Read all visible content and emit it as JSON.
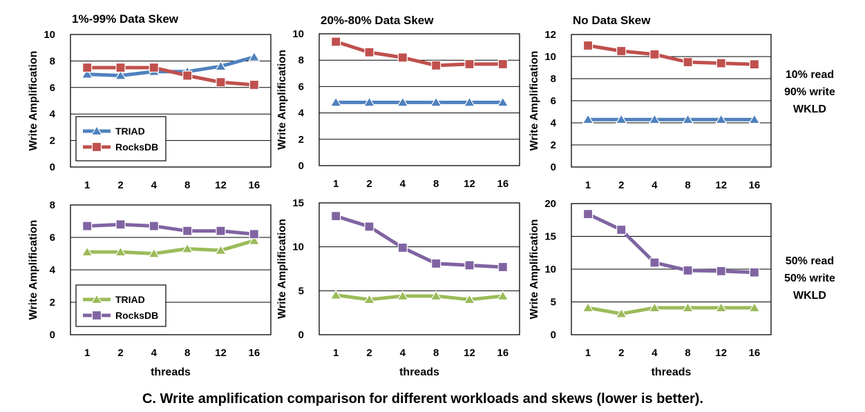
{
  "caption": "C. Write amplification comparison for different workloads and skews (lower is better).",
  "row_labels": [
    [
      "10% read",
      "90% write",
      "WKLD"
    ],
    [
      "50% read",
      "50% write",
      "WKLD"
    ]
  ],
  "colors": {
    "triad_row1": "#4f81bd",
    "triad_row2": "#9bbb59",
    "rocksdb_row1": "#c0504d",
    "rocksdb_row2": "#8064a2"
  },
  "chart_data": [
    {
      "type": "line",
      "title": "1%-99% Data Skew",
      "ylabel": "Write Amplification",
      "xlabel": "",
      "categories": [
        "1",
        "2",
        "4",
        "8",
        "12",
        "16"
      ],
      "ylim": [
        0,
        10
      ],
      "yticks": [
        0,
        2,
        4,
        6,
        8,
        10
      ],
      "grid": true,
      "legend": "bottom-left",
      "series": [
        {
          "name": "TRIAD",
          "values": [
            7.0,
            6.9,
            7.2,
            7.2,
            7.6,
            8.3
          ]
        },
        {
          "name": "RocksDB",
          "values": [
            7.5,
            7.5,
            7.5,
            6.9,
            6.4,
            6.2
          ]
        }
      ]
    },
    {
      "type": "line",
      "title": "20%-80% Data Skew",
      "ylabel": "Write Amplification",
      "xlabel": "",
      "categories": [
        "1",
        "2",
        "4",
        "8",
        "12",
        "16"
      ],
      "ylim": [
        0,
        10
      ],
      "yticks": [
        0,
        2,
        4,
        6,
        8,
        10
      ],
      "grid": true,
      "series": [
        {
          "name": "TRIAD",
          "values": [
            4.8,
            4.8,
            4.8,
            4.8,
            4.8,
            4.8
          ]
        },
        {
          "name": "RocksDB",
          "values": [
            9.4,
            8.6,
            8.2,
            7.6,
            7.7,
            7.7
          ]
        }
      ]
    },
    {
      "type": "line",
      "title": "No Data Skew",
      "ylabel": "Write Amplification",
      "xlabel": "",
      "categories": [
        "1",
        "2",
        "4",
        "8",
        "12",
        "16"
      ],
      "ylim": [
        0,
        12
      ],
      "yticks": [
        0,
        2,
        4,
        6,
        8,
        10,
        12
      ],
      "grid": true,
      "series": [
        {
          "name": "TRIAD",
          "values": [
            4.3,
            4.3,
            4.3,
            4.3,
            4.3,
            4.3
          ]
        },
        {
          "name": "RocksDB",
          "values": [
            11.0,
            10.5,
            10.2,
            9.5,
            9.4,
            9.3
          ]
        }
      ]
    },
    {
      "type": "line",
      "title": "",
      "ylabel": "Write Amplification",
      "xlabel": "threads",
      "categories": [
        "1",
        "2",
        "4",
        "8",
        "12",
        "16"
      ],
      "ylim": [
        0,
        8
      ],
      "yticks": [
        0,
        2,
        4,
        6,
        8
      ],
      "grid": true,
      "legend": "bottom-left",
      "series": [
        {
          "name": "TRIAD",
          "values": [
            5.1,
            5.1,
            5.0,
            5.3,
            5.2,
            5.8
          ]
        },
        {
          "name": "RocksDB",
          "values": [
            6.7,
            6.8,
            6.7,
            6.4,
            6.4,
            6.2
          ]
        }
      ]
    },
    {
      "type": "line",
      "title": "",
      "ylabel": "Write Amplification",
      "xlabel": "threads",
      "categories": [
        "1",
        "2",
        "4",
        "8",
        "12",
        "16"
      ],
      "ylim": [
        0,
        15
      ],
      "yticks": [
        0,
        5,
        10,
        15
      ],
      "grid": true,
      "series": [
        {
          "name": "TRIAD",
          "values": [
            4.5,
            4.0,
            4.4,
            4.4,
            4.0,
            4.4
          ]
        },
        {
          "name": "RocksDB",
          "values": [
            13.5,
            12.3,
            9.9,
            8.1,
            7.9,
            7.7
          ]
        }
      ]
    },
    {
      "type": "line",
      "title": "",
      "ylabel": "Write Amplification",
      "xlabel": "threads",
      "categories": [
        "1",
        "2",
        "4",
        "8",
        "12",
        "16"
      ],
      "ylim": [
        0,
        20
      ],
      "yticks": [
        0,
        5,
        10,
        15,
        20
      ],
      "grid": true,
      "series": [
        {
          "name": "TRIAD",
          "values": [
            4.1,
            3.2,
            4.1,
            4.1,
            4.1,
            4.1
          ]
        },
        {
          "name": "RocksDB",
          "values": [
            18.4,
            16.0,
            11.0,
            9.8,
            9.7,
            9.5
          ]
        }
      ]
    }
  ]
}
